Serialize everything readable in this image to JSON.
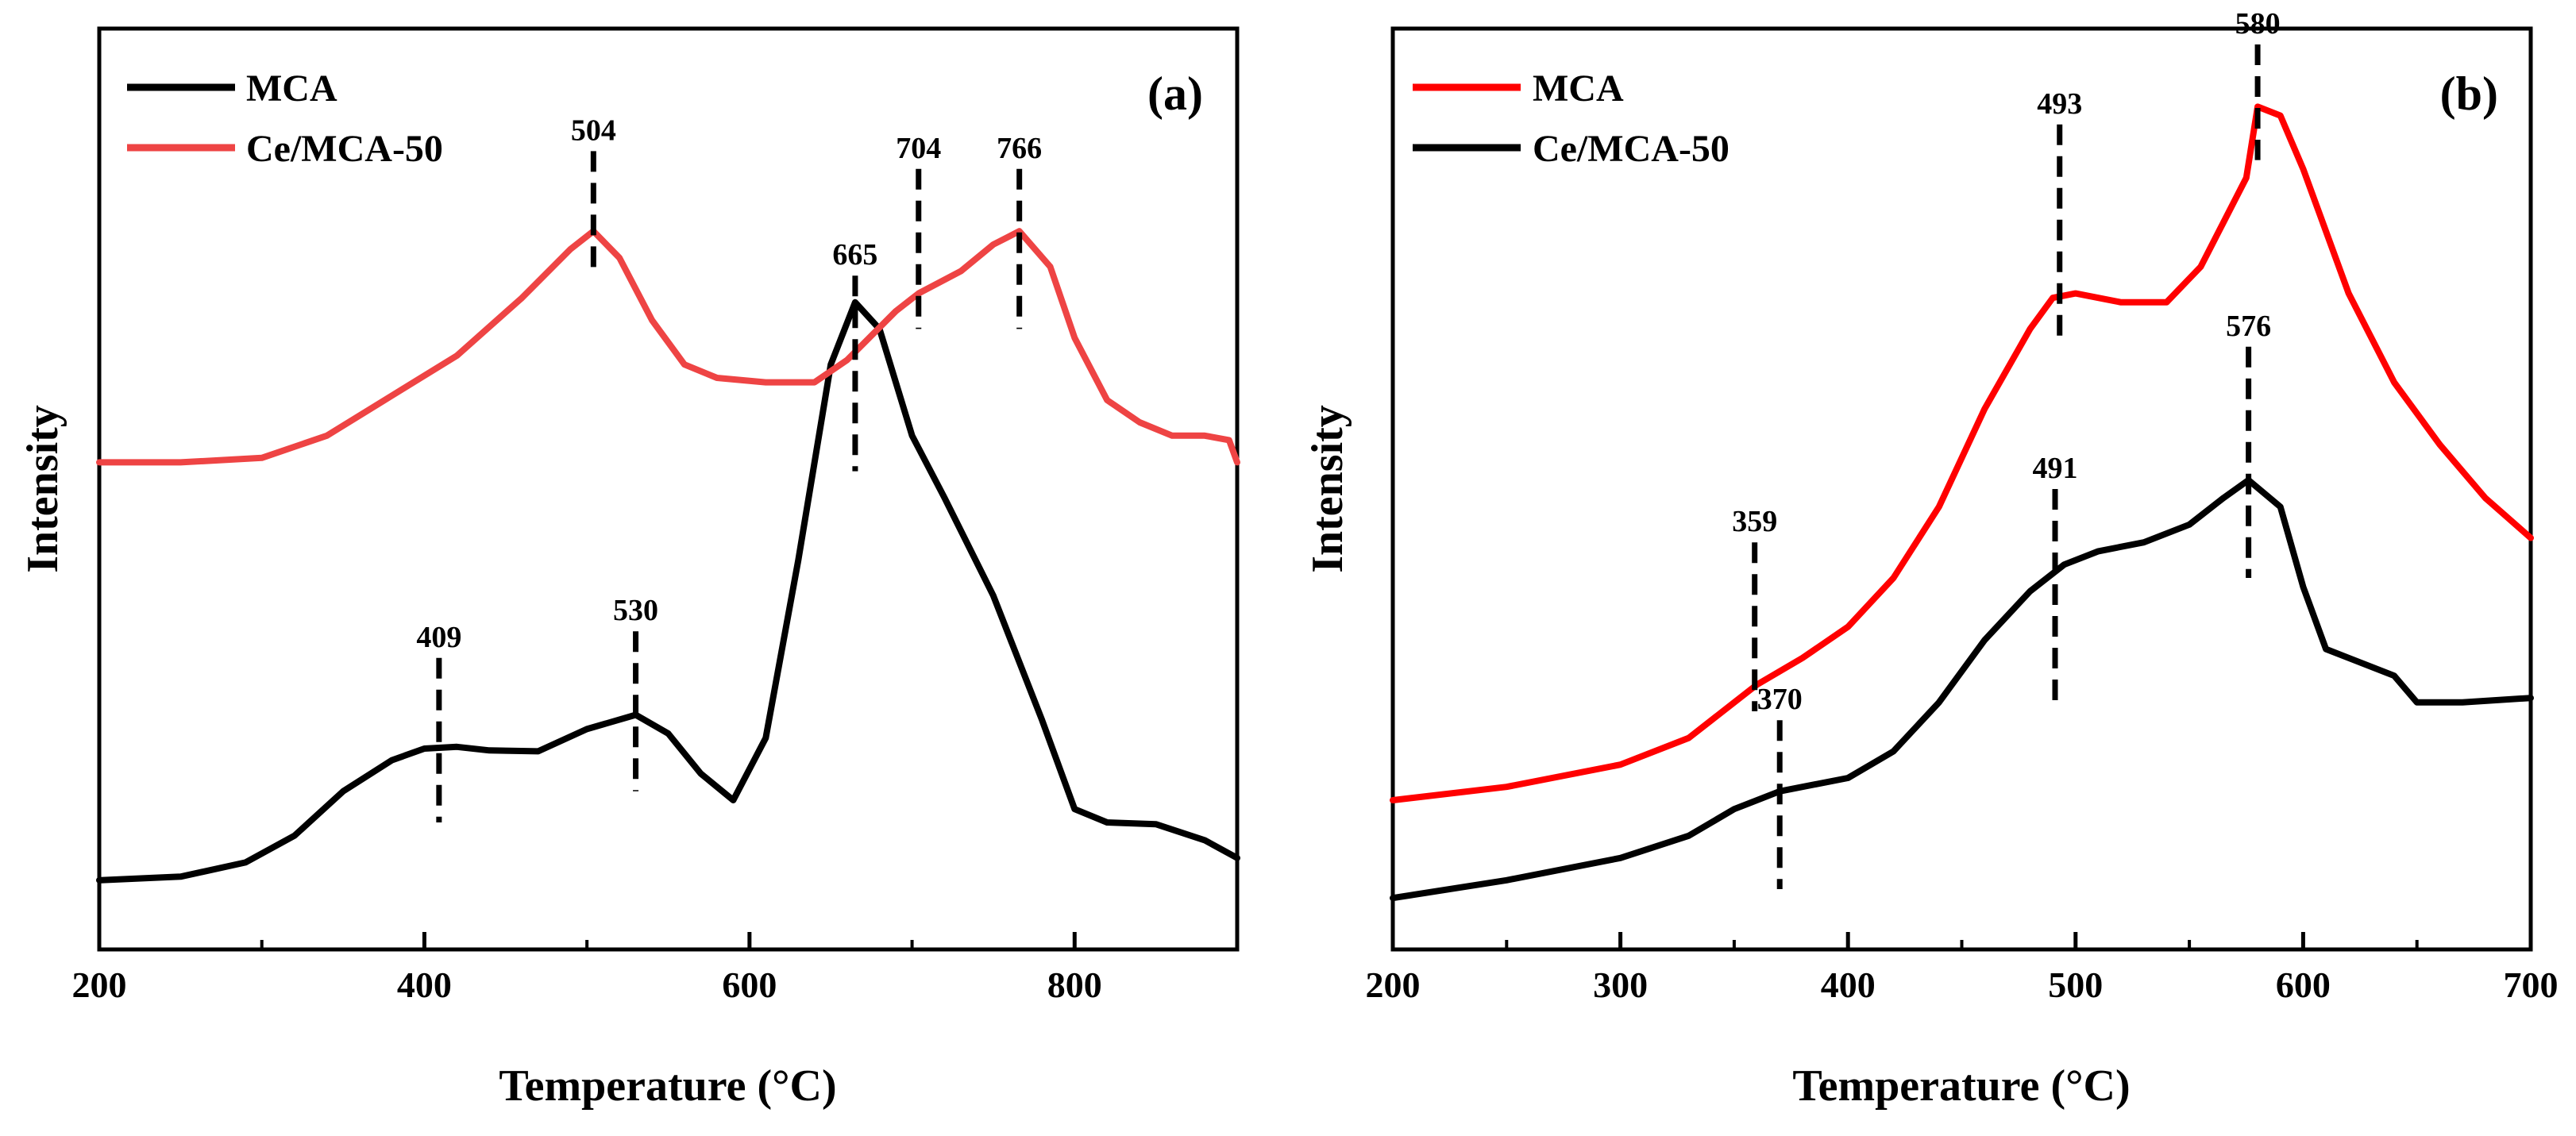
{
  "chart_data": [
    {
      "type": "line",
      "panel_label": "(a)",
      "xlabel": "Temperature (°C)",
      "ylabel": "Intensity",
      "xlim": [
        200,
        900
      ],
      "ylim": [
        0,
        100
      ],
      "x_ticks": [
        {
          "value": 200,
          "label": "200"
        },
        {
          "value": 400,
          "label": "400"
        },
        {
          "value": 600,
          "label": "600"
        },
        {
          "value": 800,
          "label": "800"
        }
      ],
      "x_minor_ticks": [
        300,
        500,
        700
      ],
      "legend_position": "top-left",
      "series": [
        {
          "name": "MCA",
          "color": "#000000",
          "points": [
            [
              200,
              6
            ],
            [
              250,
              6.4
            ],
            [
              290,
              8
            ],
            [
              320,
              11
            ],
            [
              350,
              16
            ],
            [
              380,
              19.5
            ],
            [
              400,
              20.8
            ],
            [
              420,
              21
            ],
            [
              440,
              20.6
            ],
            [
              470,
              20.5
            ],
            [
              500,
              23
            ],
            [
              530,
              24.6
            ],
            [
              550,
              22.5
            ],
            [
              570,
              18
            ],
            [
              590,
              15
            ],
            [
              610,
              22
            ],
            [
              630,
              42
            ],
            [
              650,
              64
            ],
            [
              665,
              71
            ],
            [
              680,
              68
            ],
            [
              700,
              56
            ],
            [
              720,
              49
            ],
            [
              750,
              38
            ],
            [
              780,
              24
            ],
            [
              800,
              14
            ],
            [
              820,
              12.5
            ],
            [
              850,
              12.3
            ],
            [
              880,
              10.5
            ],
            [
              900,
              8.5
            ]
          ]
        },
        {
          "name": "Ce/MCA-50",
          "color": "#ee4444",
          "points": [
            [
              200,
              53
            ],
            [
              250,
              53
            ],
            [
              300,
              53.5
            ],
            [
              340,
              56
            ],
            [
              380,
              60.5
            ],
            [
              420,
              65
            ],
            [
              460,
              71.5
            ],
            [
              490,
              77
            ],
            [
              504,
              79
            ],
            [
              520,
              76
            ],
            [
              540,
              69
            ],
            [
              560,
              64
            ],
            [
              580,
              62.5
            ],
            [
              610,
              62
            ],
            [
              640,
              62
            ],
            [
              660,
              64.5
            ],
            [
              690,
              70
            ],
            [
              704,
              72
            ],
            [
              730,
              74.5
            ],
            [
              750,
              77.5
            ],
            [
              766,
              79
            ],
            [
              785,
              75
            ],
            [
              800,
              67
            ],
            [
              820,
              60
            ],
            [
              840,
              57.5
            ],
            [
              860,
              56
            ],
            [
              880,
              56
            ],
            [
              895,
              55.5
            ],
            [
              900,
              53
            ]
          ]
        }
      ],
      "annotations": [
        {
          "x": 409,
          "label": "409",
          "y_top": 31,
          "y_bottom": 12.5
        },
        {
          "x": 530,
          "label": "530",
          "y_top": 34,
          "y_bottom": 16
        },
        {
          "x": 665,
          "label": "665",
          "y_top": 74,
          "y_bottom": 52
        },
        {
          "x": 504,
          "label": "504",
          "y_top": 88,
          "y_bottom": 74
        },
        {
          "x": 704,
          "label": "704",
          "y_top": 86,
          "y_bottom": 68
        },
        {
          "x": 766,
          "label": "766",
          "y_top": 86,
          "y_bottom": 68
        }
      ]
    },
    {
      "type": "line",
      "panel_label": "(b)",
      "xlabel": "Temperature (°C)",
      "ylabel": "Intensity",
      "xlim": [
        200,
        700
      ],
      "ylim": [
        0,
        100
      ],
      "x_ticks": [
        {
          "value": 200,
          "label": "200"
        },
        {
          "value": 300,
          "label": "300"
        },
        {
          "value": 400,
          "label": "400"
        },
        {
          "value": 500,
          "label": "500"
        },
        {
          "value": 600,
          "label": "600"
        },
        {
          "value": 700,
          "label": "700"
        }
      ],
      "x_minor_ticks": [
        250,
        350,
        450,
        550,
        650
      ],
      "legend_position": "top-left",
      "series": [
        {
          "name": "MCA",
          "color": "#ff0000",
          "points": [
            [
              200,
              15
            ],
            [
              250,
              16.5
            ],
            [
              300,
              19
            ],
            [
              330,
              22
            ],
            [
              360,
              28
            ],
            [
              380,
              31
            ],
            [
              400,
              34.5
            ],
            [
              420,
              40
            ],
            [
              440,
              48
            ],
            [
              460,
              59
            ],
            [
              480,
              68
            ],
            [
              490,
              71.5
            ],
            [
              500,
              72
            ],
            [
              520,
              71
            ],
            [
              540,
              71
            ],
            [
              555,
              75
            ],
            [
              565,
              80
            ],
            [
              575,
              85
            ],
            [
              580,
              93
            ],
            [
              590,
              92
            ],
            [
              600,
              86
            ],
            [
              620,
              72
            ],
            [
              640,
              62
            ],
            [
              660,
              55
            ],
            [
              680,
              49
            ],
            [
              700,
              44.5
            ]
          ]
        },
        {
          "name": "Ce/MCA-50",
          "color": "#000000",
          "points": [
            [
              200,
              4
            ],
            [
              250,
              6
            ],
            [
              300,
              8.5
            ],
            [
              330,
              11
            ],
            [
              350,
              14
            ],
            [
              370,
              16
            ],
            [
              400,
              17.5
            ],
            [
              420,
              20.5
            ],
            [
              440,
              26
            ],
            [
              460,
              33
            ],
            [
              480,
              38.5
            ],
            [
              495,
              41.5
            ],
            [
              510,
              43
            ],
            [
              530,
              44
            ],
            [
              550,
              46
            ],
            [
              565,
              49
            ],
            [
              576,
              51
            ],
            [
              590,
              48
            ],
            [
              600,
              39
            ],
            [
              610,
              32
            ],
            [
              620,
              31
            ],
            [
              640,
              29
            ],
            [
              650,
              26
            ],
            [
              670,
              26
            ],
            [
              700,
              26.5
            ]
          ]
        }
      ],
      "annotations": [
        {
          "x": 359,
          "label": "359",
          "y_top": 44,
          "y_bottom": 25
        },
        {
          "x": 370,
          "label": "370",
          "y_top": 24,
          "y_bottom": 5
        },
        {
          "x": 493,
          "label": "493",
          "y_top": 91,
          "y_bottom": 66
        },
        {
          "x": 491,
          "label": "491",
          "y_top": 50,
          "y_bottom": 26
        },
        {
          "x": 580,
          "label": "580",
          "y_top": 100,
          "y_bottom": 87
        },
        {
          "x": 576,
          "label": "576",
          "y_top": 66,
          "y_bottom": 40
        }
      ]
    }
  ]
}
